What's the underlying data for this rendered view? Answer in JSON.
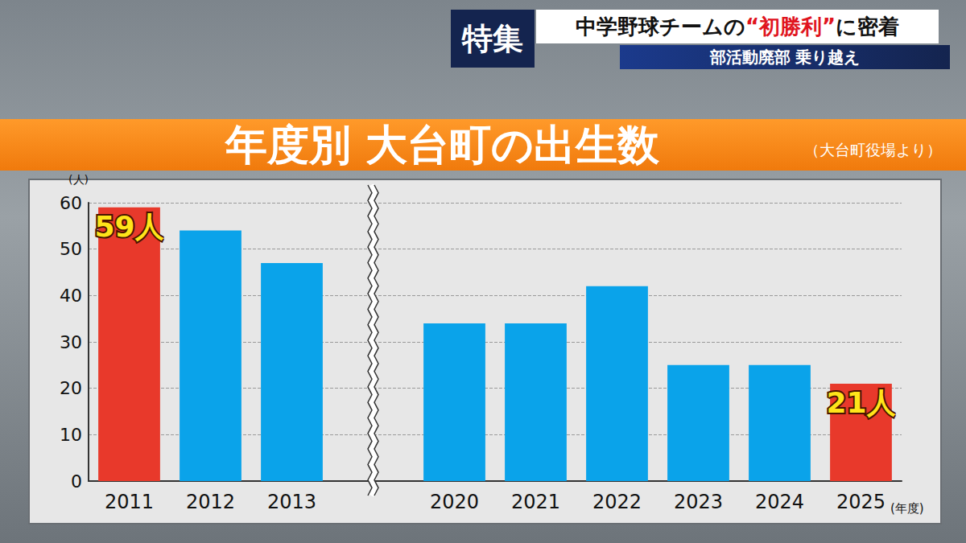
{
  "banner": {
    "tag": "特集",
    "headline": [
      "中学野球チームの",
      "“初勝利”",
      "に密着"
    ],
    "subheadline": "部活動廃部 乗り越え"
  },
  "chart_data": {
    "type": "bar",
    "title": "年度別 大台町の出生数",
    "source": "（大台町役場より）",
    "x_label": "(年度)",
    "y_label": "(人)",
    "categories": [
      "2011",
      "2012",
      "2013",
      null,
      "2020",
      "2021",
      "2022",
      "2023",
      "2024",
      "2025"
    ],
    "values": [
      59,
      54,
      47,
      null,
      34,
      34,
      42,
      25,
      25,
      21
    ],
    "value_labels": [
      "59人",
      null,
      null,
      null,
      null,
      null,
      null,
      null,
      null,
      "21人"
    ],
    "colors": [
      "#e8392b",
      "#0aa3ea",
      "#0aa3ea",
      null,
      "#0aa3ea",
      "#0aa3ea",
      "#0aa3ea",
      "#0aa3ea",
      "#0aa3ea",
      "#e8392b"
    ],
    "ylim": [
      0,
      60
    ],
    "yticks": [
      0,
      10,
      20,
      30,
      40,
      50,
      60
    ],
    "grid": true,
    "data_labels": true
  }
}
